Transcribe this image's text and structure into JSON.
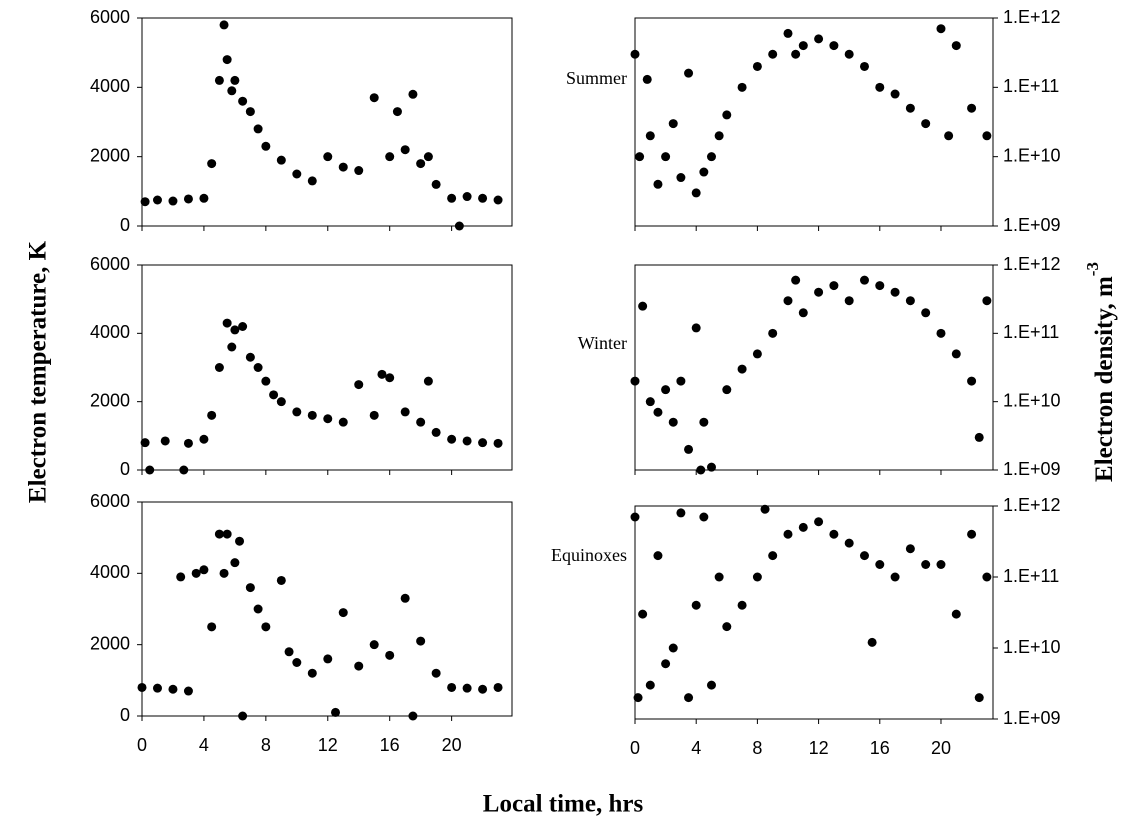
{
  "figure": {
    "xlabel": "Local time, hrs",
    "ylabel_left": "Electron temperature, K",
    "ylabel_right": "Electron density, m",
    "ylabel_right_superscript": "-3"
  },
  "chart_data": [
    {
      "type": "scatter",
      "color": "#000000",
      "xlim": [
        0,
        23.9
      ],
      "xticks": [
        0,
        4,
        8,
        12,
        16,
        20
      ],
      "ylim": [
        0,
        6000
      ],
      "yticks": [
        0,
        2000,
        4000,
        6000
      ],
      "x": [
        0.2,
        1,
        2,
        3,
        4,
        4.5,
        5,
        5.3,
        5.5,
        5.8,
        6,
        6.5,
        7,
        7.5,
        8,
        9,
        10,
        11,
        12,
        13,
        14,
        15,
        16,
        16.5,
        17,
        17.5,
        18,
        18.5,
        19,
        20,
        20.5,
        21,
        22,
        23
      ],
      "values": [
        700,
        750,
        720,
        780,
        800,
        1800,
        4200,
        5800,
        4800,
        3900,
        4200,
        3600,
        3300,
        2800,
        2300,
        1900,
        1500,
        1300,
        2000,
        1700,
        1600,
        3700,
        2000,
        3300,
        2200,
        3800,
        1800,
        2000,
        1200,
        800,
        0,
        850,
        800,
        750
      ]
    },
    {
      "type": "scatter",
      "color": "#000000",
      "annotation": "Summer",
      "log_y": true,
      "xlim": [
        0,
        23.4
      ],
      "xticks": [
        0,
        4,
        8,
        12,
        16,
        20
      ],
      "ylim": [
        1000000000.0,
        1000000000000.0
      ],
      "yticks": [
        {
          "value": 1000000000.0,
          "label": "1.E+09"
        },
        {
          "value": 10000000000.0,
          "label": "1.E+10"
        },
        {
          "value": 100000000000.0,
          "label": "1.E+11"
        },
        {
          "value": 1000000000000.0,
          "label": "1.E+12"
        }
      ],
      "x": [
        0,
        0.3,
        0.8,
        1,
        1.5,
        2,
        2.5,
        3,
        3.5,
        4,
        4.5,
        5,
        5.5,
        6,
        7,
        8,
        9,
        10,
        10.5,
        11,
        12,
        13,
        14,
        15,
        16,
        17,
        18,
        19,
        20,
        20.5,
        21,
        22,
        23
      ],
      "values": [
        300000000000.0,
        10000000000.0,
        130000000000.0,
        20000000000.0,
        4000000000.0,
        10000000000.0,
        30000000000.0,
        5000000000.0,
        160000000000.0,
        3000000000.0,
        6000000000.0,
        10000000000.0,
        20000000000.0,
        40000000000.0,
        100000000000.0,
        200000000000.0,
        300000000000.0,
        600000000000.0,
        300000000000.0,
        400000000000.0,
        500000000000.0,
        400000000000.0,
        300000000000.0,
        200000000000.0,
        100000000000.0,
        80000000000.0,
        50000000000.0,
        30000000000.0,
        700000000000.0,
        20000000000.0,
        400000000000.0,
        50000000000.0,
        20000000000.0
      ]
    },
    {
      "type": "scatter",
      "color": "#000000",
      "xlim": [
        0,
        23.9
      ],
      "xticks": [
        0,
        4,
        8,
        12,
        16,
        20
      ],
      "ylim": [
        0,
        6000
      ],
      "yticks": [
        0,
        2000,
        4000,
        6000
      ],
      "x": [
        0.2,
        0.5,
        1.5,
        2.7,
        3,
        4,
        4.5,
        5,
        5.5,
        5.8,
        6,
        6.5,
        7,
        7.5,
        8,
        8.5,
        9,
        10,
        11,
        12,
        13,
        14,
        15,
        15.5,
        16,
        17,
        18,
        18.5,
        19,
        20,
        21,
        22,
        23
      ],
      "values": [
        800,
        0,
        850,
        0,
        780,
        900,
        1600,
        3000,
        4300,
        3600,
        4100,
        4200,
        3300,
        3000,
        2600,
        2200,
        2000,
        1700,
        1600,
        1500,
        1400,
        2500,
        1600,
        2800,
        2700,
        1700,
        1400,
        2600,
        1100,
        900,
        850,
        800,
        780
      ]
    },
    {
      "type": "scatter",
      "color": "#000000",
      "annotation": "Winter",
      "log_y": true,
      "xlim": [
        0,
        23.4
      ],
      "xticks": [
        0,
        4,
        8,
        12,
        16,
        20
      ],
      "ylim": [
        1000000000.0,
        1000000000000.0
      ],
      "yticks": [
        {
          "value": 1000000000.0,
          "label": "1.E+09"
        },
        {
          "value": 10000000000.0,
          "label": "1.E+10"
        },
        {
          "value": 100000000000.0,
          "label": "1.E+11"
        },
        {
          "value": 1000000000000.0,
          "label": "1.E+12"
        }
      ],
      "x": [
        0,
        0.5,
        1,
        1.5,
        2,
        2.5,
        3,
        3.5,
        4,
        4.3,
        4.5,
        5,
        6,
        7,
        8,
        9,
        10,
        10.5,
        11,
        12,
        13,
        14,
        15,
        16,
        17,
        18,
        19,
        20,
        21,
        22,
        22.5,
        23
      ],
      "values": [
        20000000000.0,
        250000000000.0,
        10000000000.0,
        7000000000.0,
        15000000000.0,
        5000000000.0,
        20000000000.0,
        2000000000.0,
        120000000000.0,
        1000000000.0,
        5000000000.0,
        1100000000.0,
        15000000000.0,
        30000000000.0,
        50000000000.0,
        100000000000.0,
        300000000000.0,
        600000000000.0,
        200000000000.0,
        400000000000.0,
        500000000000.0,
        300000000000.0,
        600000000000.0,
        500000000000.0,
        400000000000.0,
        300000000000.0,
        200000000000.0,
        100000000000.0,
        50000000000.0,
        20000000000.0,
        3000000000.0,
        300000000000.0
      ]
    },
    {
      "type": "scatter",
      "color": "#000000",
      "xlim": [
        0,
        23.9
      ],
      "xticks": [
        0,
        4,
        8,
        12,
        16,
        20
      ],
      "ylim": [
        0,
        6000
      ],
      "yticks": [
        0,
        2000,
        4000,
        6000
      ],
      "show_xtick_labels": true,
      "x": [
        0,
        1,
        2,
        2.5,
        3,
        3.5,
        4,
        4.5,
        5,
        5.3,
        5.5,
        6,
        6.3,
        6.5,
        7,
        7.5,
        8,
        9,
        9.5,
        10,
        11,
        12,
        12.5,
        13,
        14,
        15,
        16,
        17,
        17.5,
        18,
        19,
        20,
        21,
        22,
        23
      ],
      "values": [
        800,
        780,
        750,
        3900,
        700,
        4000,
        4100,
        2500,
        5100,
        4000,
        5100,
        4300,
        4900,
        0,
        3600,
        3000,
        2500,
        3800,
        1800,
        1500,
        1200,
        1600,
        100,
        2900,
        1400,
        2000,
        1700,
        3300,
        0,
        2100,
        1200,
        800,
        780,
        750,
        800
      ]
    },
    {
      "type": "scatter",
      "color": "#000000",
      "annotation": "Equinoxes",
      "log_y": true,
      "xlim": [
        0,
        23.4
      ],
      "xticks": [
        0,
        4,
        8,
        12,
        16,
        20
      ],
      "ylim": [
        1000000000.0,
        1000000000000.0
      ],
      "show_xtick_labels": true,
      "yticks": [
        {
          "value": 1000000000.0,
          "label": "1.E+09"
        },
        {
          "value": 10000000000.0,
          "label": "1.E+10"
        },
        {
          "value": 100000000000.0,
          "label": "1.E+11"
        },
        {
          "value": 1000000000000.0,
          "label": "1.E+12"
        }
      ],
      "x": [
        0,
        0.2,
        0.5,
        1,
        1.5,
        2,
        2.5,
        3,
        3.5,
        4,
        4.5,
        5,
        5.5,
        6,
        7,
        8,
        8.5,
        9,
        10,
        11,
        12,
        13,
        14,
        15,
        15.5,
        16,
        17,
        18,
        19,
        20,
        21,
        22,
        22.5,
        23
      ],
      "values": [
        700000000000.0,
        2000000000.0,
        30000000000.0,
        3000000000.0,
        200000000000.0,
        6000000000.0,
        10000000000.0,
        800000000000.0,
        2000000000.0,
        40000000000.0,
        700000000000.0,
        3000000000.0,
        100000000000.0,
        20000000000.0,
        40000000000.0,
        100000000000.0,
        900000000000.0,
        200000000000.0,
        400000000000.0,
        500000000000.0,
        600000000000.0,
        400000000000.0,
        300000000000.0,
        200000000000.0,
        12000000000.0,
        150000000000.0,
        100000000000.0,
        250000000000.0,
        150000000000.0,
        150000000000.0,
        30000000000.0,
        400000000000.0,
        2000000000.0,
        100000000000.0
      ]
    }
  ]
}
